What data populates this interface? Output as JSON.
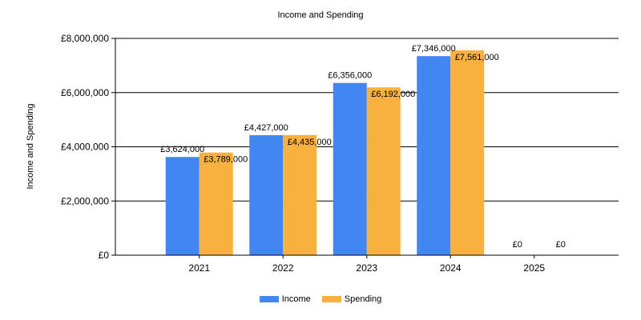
{
  "chart_data": {
    "type": "bar",
    "title": "Income and Spending",
    "xlabel": "",
    "ylabel": "Income and Spending",
    "categories": [
      "2021",
      "2022",
      "2023",
      "2024",
      "2025"
    ],
    "series": [
      {
        "name": "Income",
        "color": "#4286f2",
        "values": [
          3624000,
          4427000,
          6356000,
          7346000,
          0
        ],
        "labels": [
          "£3,624,000",
          "£4,427,000",
          "£6,356,000",
          "£7,346,000",
          "£0"
        ]
      },
      {
        "name": "Spending",
        "color": "#f8b03f",
        "values": [
          3789000,
          4435000,
          6192000,
          7561000,
          0
        ],
        "labels": [
          "£3,789,000",
          "£4,435,000",
          "£6,192,000",
          "£7,561,000",
          "£0"
        ]
      }
    ],
    "ylim": [
      0,
      8000000
    ],
    "yticks": [
      0,
      2000000,
      4000000,
      6000000,
      8000000
    ],
    "ytick_labels": [
      "£0",
      "£2,000,000",
      "£4,000,000",
      "£6,000,000",
      "£8,000,000"
    ],
    "grid": true,
    "legend_position": "bottom-center"
  }
}
